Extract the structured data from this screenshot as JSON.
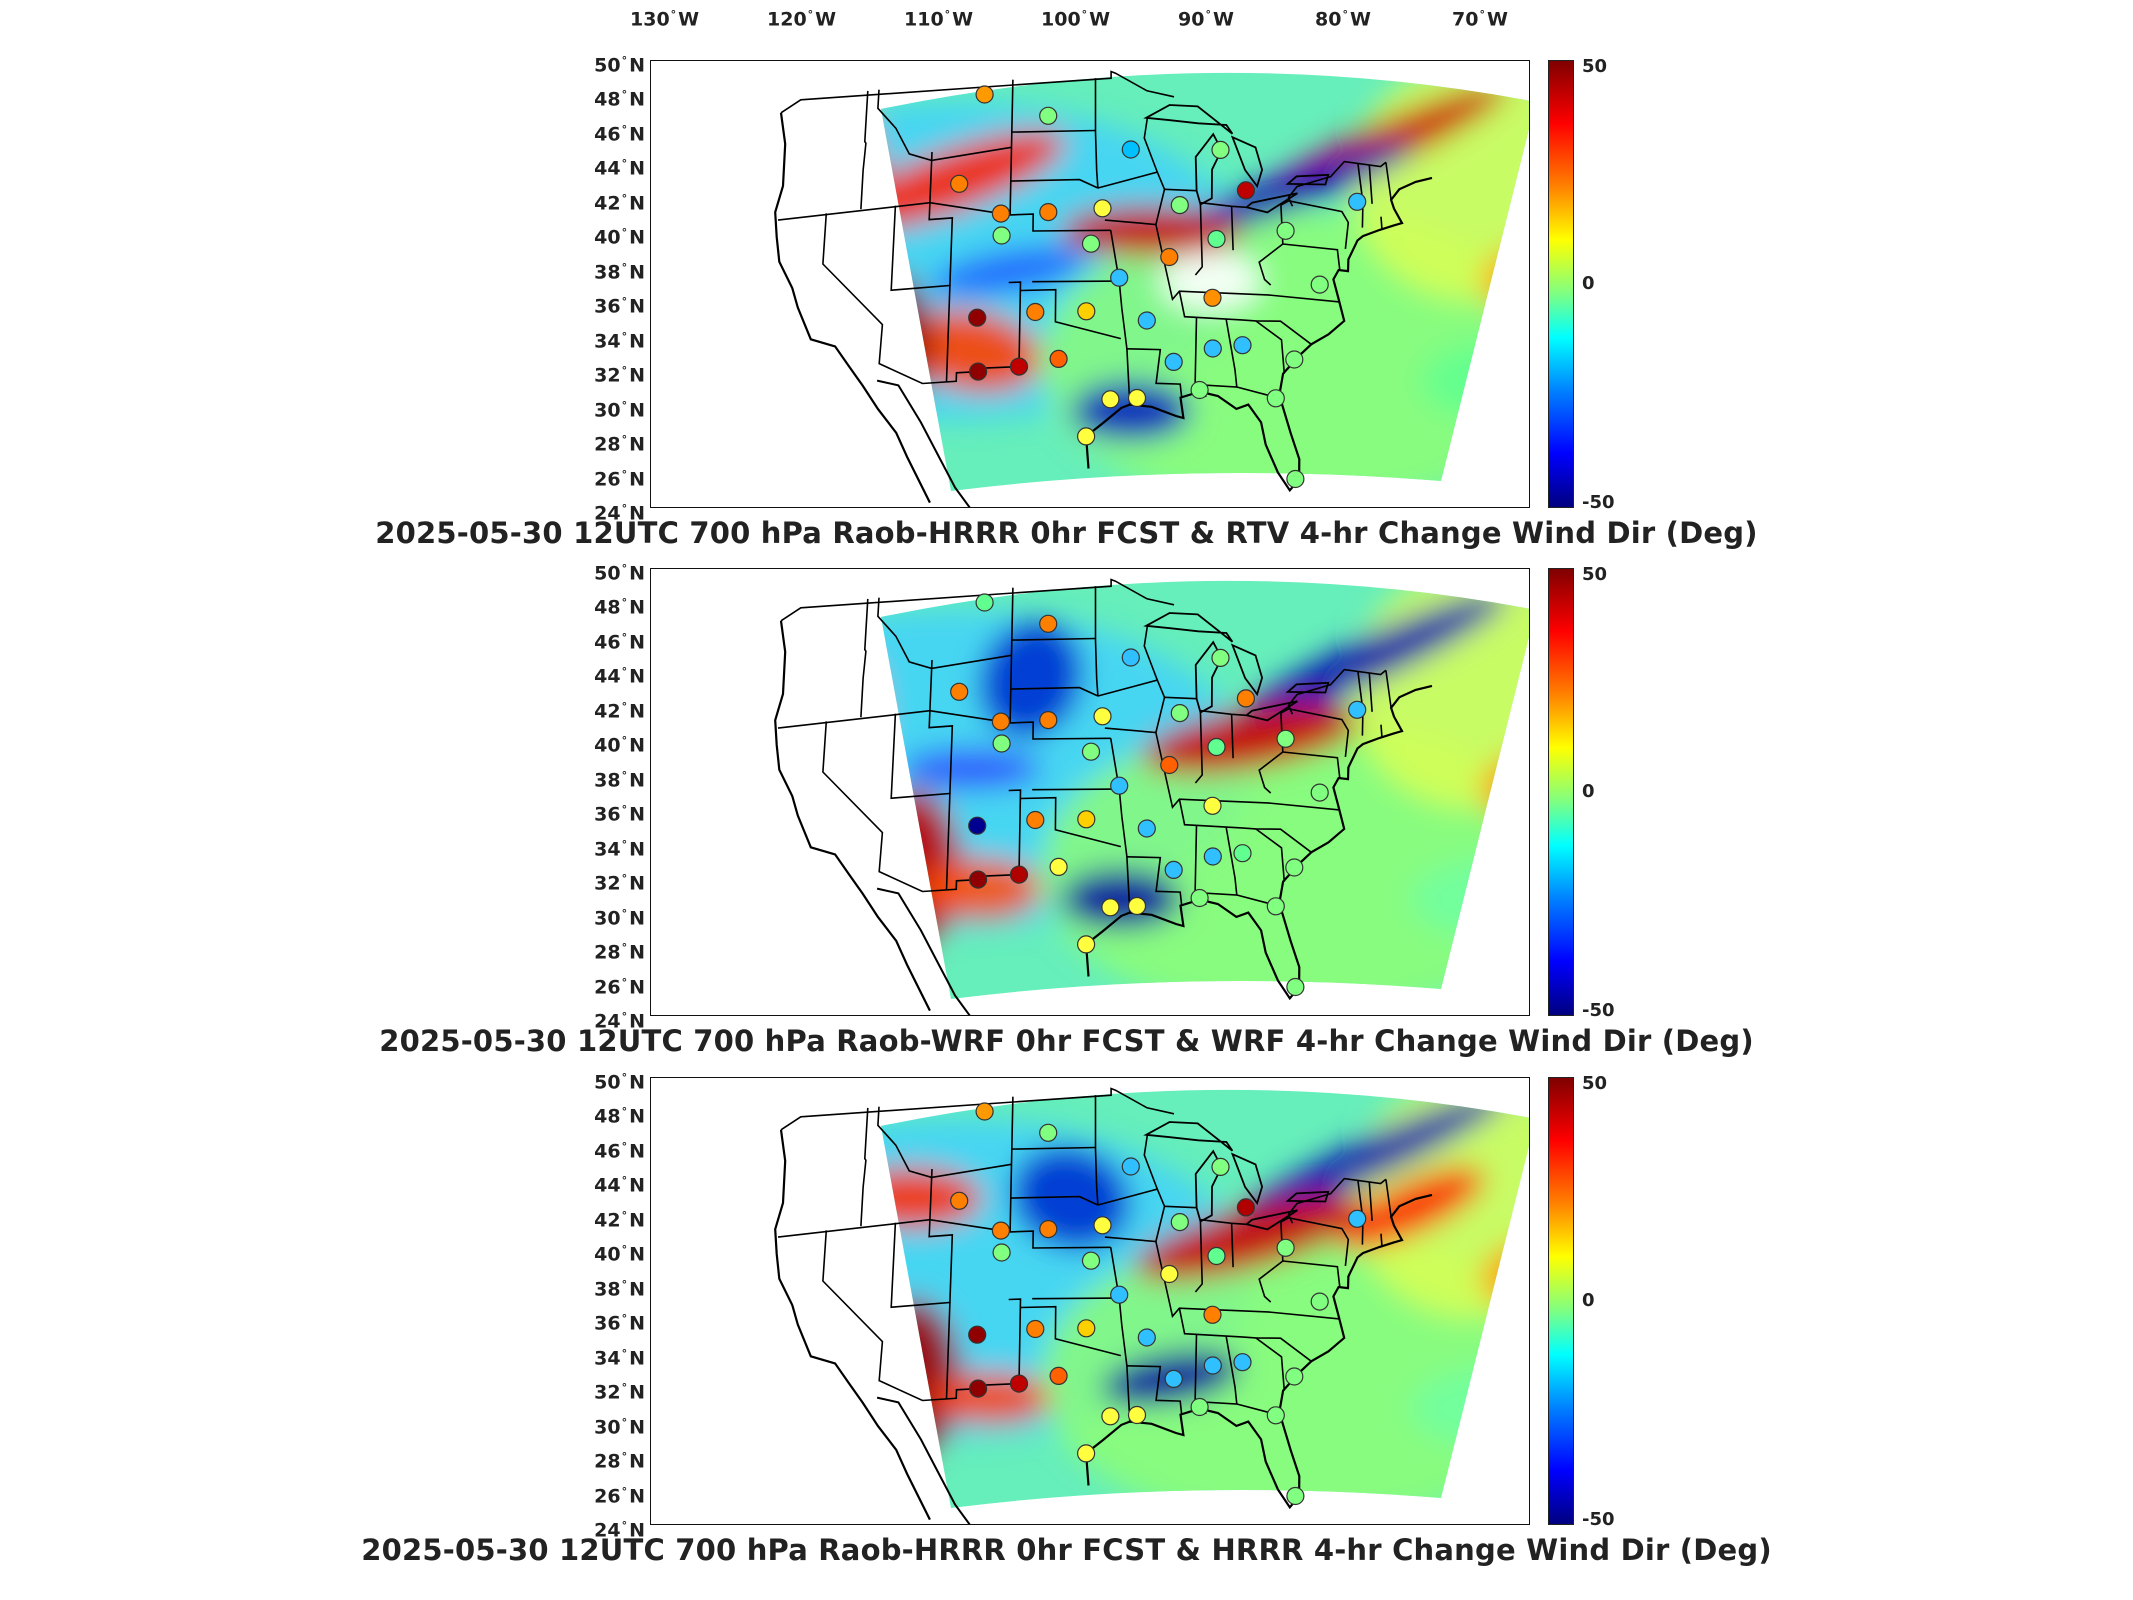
{
  "lon_labels": [
    {
      "deg": "130",
      "hem": "W"
    },
    {
      "deg": "120",
      "hem": "W"
    },
    {
      "deg": "110",
      "hem": "W"
    },
    {
      "deg": "100",
      "hem": "W"
    },
    {
      "deg": "90",
      "hem": "W"
    },
    {
      "deg": "80",
      "hem": "W"
    },
    {
      "deg": "70",
      "hem": "W"
    }
  ],
  "lat_labels": [
    {
      "deg": "50",
      "hem": "N"
    },
    {
      "deg": "48",
      "hem": "N"
    },
    {
      "deg": "46",
      "hem": "N"
    },
    {
      "deg": "44",
      "hem": "N"
    },
    {
      "deg": "42",
      "hem": "N"
    },
    {
      "deg": "40",
      "hem": "N"
    },
    {
      "deg": "38",
      "hem": "N"
    },
    {
      "deg": "36",
      "hem": "N"
    },
    {
      "deg": "34",
      "hem": "N"
    },
    {
      "deg": "32",
      "hem": "N"
    },
    {
      "deg": "30",
      "hem": "N"
    },
    {
      "deg": "28",
      "hem": "N"
    },
    {
      "deg": "26",
      "hem": "N"
    },
    {
      "deg": "24",
      "hem": "N"
    }
  ],
  "colorbar": {
    "max": "50",
    "mid": "0",
    "min": "-50"
  },
  "panels": [
    {
      "title": "2025-05-30 12UTC 700 hPa Raob-HRRR 0hr FCST & RTV 4-hr Change Wind Dir (Deg)"
    },
    {
      "title": "2025-05-30 12UTC 700 hPa Raob-WRF 0hr FCST & WRF 4-hr Change Wind Dir (Deg)"
    },
    {
      "title": "2025-05-30 12UTC 700 hPa Raob-HRRR 0hr FCST & HRRR 4-hr Change Wind Dir (Deg)"
    }
  ],
  "colors": {
    "scale": [
      "#800000",
      "#ff0000",
      "#ff8000",
      "#ffff00",
      "#80ff80",
      "#00ffff",
      "#0080ff",
      "#0000ff",
      "#000080"
    ]
  }
}
